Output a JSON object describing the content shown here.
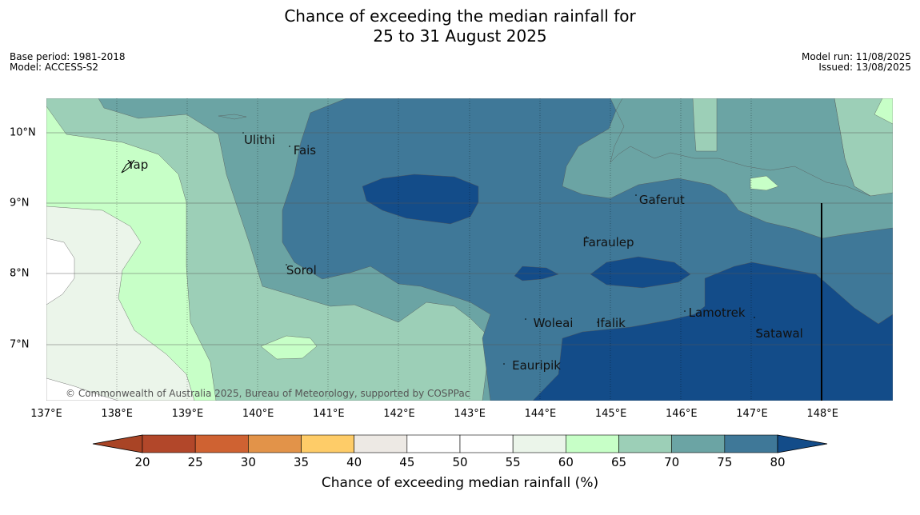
{
  "title": {
    "line1": "Chance of exceeding the median rainfall for",
    "line2": "25 to 31 August 2025"
  },
  "meta": {
    "base_period": "Base period: 1981-2018",
    "model": "Model: ACCESS-S2",
    "model_run": "Model run: 11/08/2025",
    "issued": "Issued: 13/08/2025"
  },
  "axes": {
    "longitudes": [
      "137°E",
      "138°E",
      "139°E",
      "140°E",
      "141°E",
      "142°E",
      "143°E",
      "144°E",
      "145°E",
      "146°E",
      "147°E",
      "148°E"
    ],
    "latitudes": [
      "10°N",
      "9°N",
      "8°N",
      "7°N"
    ]
  },
  "places": [
    {
      "name": "Ulithi",
      "lon": 139.8,
      "lat": 9.9
    },
    {
      "name": "Fais",
      "lon": 140.5,
      "lat": 9.75
    },
    {
      "name": "Yap",
      "lon": 138.15,
      "lat": 9.55
    },
    {
      "name": "Gaferut",
      "lon": 145.4,
      "lat": 9.05
    },
    {
      "name": "Faraulep",
      "lon": 144.6,
      "lat": 8.45
    },
    {
      "name": "Sorol",
      "lon": 140.4,
      "lat": 8.05
    },
    {
      "name": "Lamotrek",
      "lon": 146.1,
      "lat": 7.45
    },
    {
      "name": "Woleai",
      "lon": 143.9,
      "lat": 7.3
    },
    {
      "name": "Ifalik",
      "lon": 144.8,
      "lat": 7.3
    },
    {
      "name": "Satawal",
      "lon": 147.05,
      "lat": 7.15
    },
    {
      "name": "Eauripik",
      "lon": 143.6,
      "lat": 6.7
    }
  ],
  "copyright": "© Commonwealth of Australia 2025, Bureau of Meteorology, supported by COSPPac",
  "colorbar": {
    "ticks": [
      "20",
      "25",
      "30",
      "35",
      "40",
      "45",
      "50",
      "55",
      "60",
      "65",
      "70",
      "75",
      "80"
    ],
    "colors": [
      "#a94425",
      "#b2472a",
      "#cf6232",
      "#e29349",
      "#fecc68",
      "#ede9e4",
      "#ffffff",
      "#ffffff",
      "#ebf5ea",
      "#c7ffc7",
      "#9ccfb7",
      "#6ba4a4",
      "#3f7898",
      "#134c89"
    ],
    "label": "Chance of exceeding median rainfall (%)"
  },
  "colors": {
    "c55": "#ffffff",
    "c60": "#ebf5ea",
    "c65": "#c7ffc7",
    "c70": "#9ccfb7",
    "c75": "#6ba4a4",
    "c80": "#3f7898",
    "c85": "#134c89"
  }
}
